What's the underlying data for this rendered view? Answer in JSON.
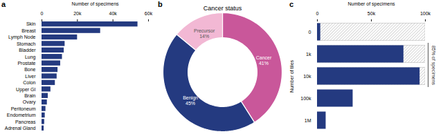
{
  "chart_data": [
    {
      "type": "bar",
      "orientation": "horizontal",
      "panel_label": "a",
      "xlabel": "Number of specimens",
      "categories": [
        "Skin",
        "Breast",
        "Lymph Node",
        "Stomach",
        "Bladder",
        "Lung",
        "Prostate",
        "Bone",
        "Liver",
        "Colon",
        "Upper GI",
        "Brain",
        "Ovary",
        "Peritoneum",
        "Endometrium",
        "Pancreas",
        "Adrenal Gland"
      ],
      "values": [
        54000,
        33000,
        20000,
        13000,
        12500,
        11500,
        10500,
        9000,
        8500,
        7500,
        5000,
        3500,
        3000,
        2200,
        1800,
        1500,
        1200
      ],
      "color": "#243a80",
      "xlim": [
        0,
        60000
      ],
      "xticks": [
        0,
        {
          "value": 20000,
          "label": "20k"
        },
        {
          "value": 40000,
          "label": "40k"
        },
        {
          "value": 60000,
          "label": "60k"
        }
      ]
    },
    {
      "type": "donut",
      "panel_label": "b",
      "title": "Cancer status",
      "categories": [
        "Cancer",
        "Benign",
        "Precursor"
      ],
      "values": [
        41,
        45,
        14
      ],
      "value_labels": [
        "41%",
        "45%",
        "14%"
      ],
      "data_labels": true,
      "colors": [
        "#c9579a",
        "#243a80",
        "#f2b8d4"
      ]
    },
    {
      "type": "bar",
      "orientation": "horizontal",
      "panel_label": "c",
      "xlabel": "Number of specimens",
      "ylabel": "Number of tiles",
      "categories": [
        "0",
        "1k",
        "10k",
        "100k",
        "1M"
      ],
      "values": [
        3000,
        80000,
        95000,
        33000,
        8000
      ],
      "hatch_values": [
        100000,
        100000,
        100000,
        0,
        0
      ],
      "color": "#243a80",
      "xlim": [
        0,
        100000
      ],
      "xticks": [
        0,
        {
          "value": 50000,
          "label": "50k"
        },
        {
          "value": 100000,
          "label": "100k"
        }
      ],
      "annotations": [
        {
          "text": "85% of specimens",
          "from": "1k",
          "to": "10k"
        }
      ]
    }
  ]
}
